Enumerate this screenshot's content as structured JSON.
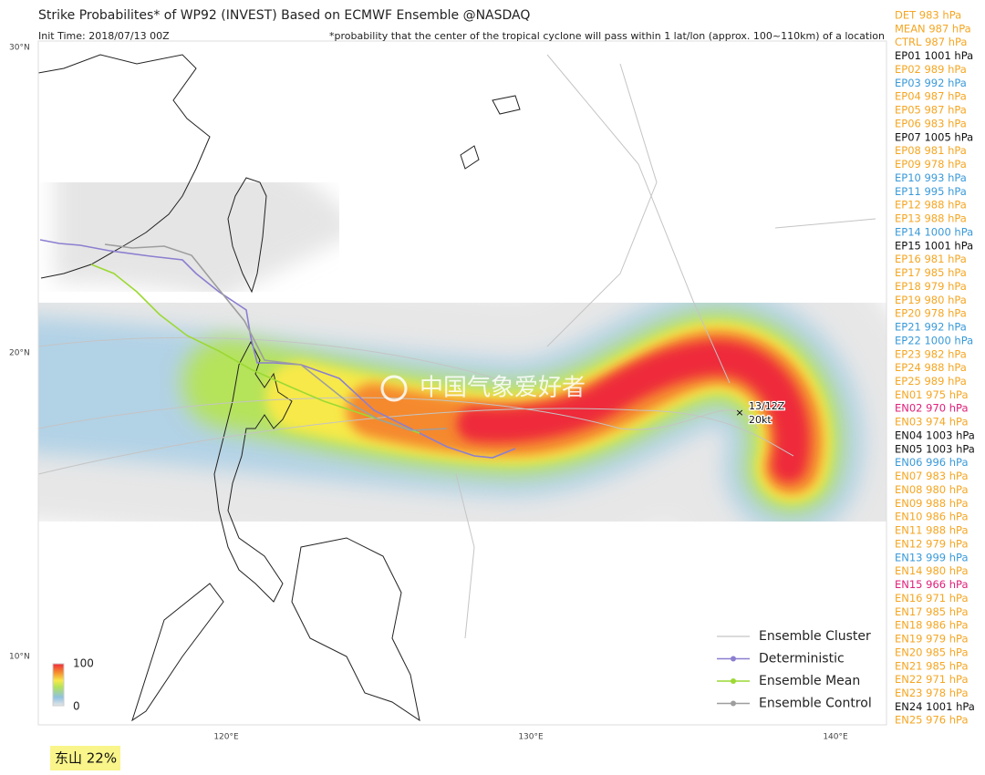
{
  "header": {
    "title": "Strike Probabilites* of WP92 (INVEST) Based on ECMWF Ensemble  @NASDAQ",
    "init_time": "Init Time: 2018/07/13 00Z",
    "note": "*probability that the center of the tropical cyclone will pass within 1 lat/lon (approx. 100~110km) of a location"
  },
  "map": {
    "lat_labels": [
      "30°N",
      "20°N",
      "10°N"
    ],
    "lon_labels": [
      "120°E",
      "130°E",
      "140°E"
    ],
    "colorbar": {
      "max": 100,
      "min": 0
    },
    "storm_label": [
      "13/12Z",
      "20kt"
    ],
    "watermark": "中国气象爱好者"
  },
  "legend": {
    "items": [
      "Ensemble Cluster",
      "Deterministic",
      "Ensemble Mean",
      "Ensemble Control"
    ]
  },
  "footer": {
    "location_label": "东山 22%"
  },
  "members": [
    {
      "label": "DET 983 hPa",
      "color": "#f5a623"
    },
    {
      "label": "MEAN 987 hPa",
      "color": "#f5a623"
    },
    {
      "label": "CTRL 987 hPa",
      "color": "#f5a623"
    },
    {
      "label": "EP01 1001 hPa",
      "color": "#111111"
    },
    {
      "label": "EP02 989 hPa",
      "color": "#f5a623"
    },
    {
      "label": "EP03 992 hPa",
      "color": "#3a9ad9"
    },
    {
      "label": "EP04 987 hPa",
      "color": "#f5a623"
    },
    {
      "label": "EP05 987 hPa",
      "color": "#f5a623"
    },
    {
      "label": "EP06 983 hPa",
      "color": "#f5a623"
    },
    {
      "label": "EP07 1005 hPa",
      "color": "#111111"
    },
    {
      "label": "EP08 981 hPa",
      "color": "#f5a623"
    },
    {
      "label": "EP09 978 hPa",
      "color": "#f5a623"
    },
    {
      "label": "EP10 993 hPa",
      "color": "#3a9ad9"
    },
    {
      "label": "EP11 995 hPa",
      "color": "#3a9ad9"
    },
    {
      "label": "EP12 988 hPa",
      "color": "#f5a623"
    },
    {
      "label": "EP13 988 hPa",
      "color": "#f5a623"
    },
    {
      "label": "EP14 1000 hPa",
      "color": "#3a9ad9"
    },
    {
      "label": "EP15 1001 hPa",
      "color": "#111111"
    },
    {
      "label": "EP16 981 hPa",
      "color": "#f5a623"
    },
    {
      "label": "EP17 985 hPa",
      "color": "#f5a623"
    },
    {
      "label": "EP18 979 hPa",
      "color": "#f5a623"
    },
    {
      "label": "EP19 980 hPa",
      "color": "#f5a623"
    },
    {
      "label": "EP20 978 hPa",
      "color": "#f5a623"
    },
    {
      "label": "EP21 992 hPa",
      "color": "#3a9ad9"
    },
    {
      "label": "EP22 1000 hPa",
      "color": "#3a9ad9"
    },
    {
      "label": "EP23 982 hPa",
      "color": "#f5a623"
    },
    {
      "label": "EP24 988 hPa",
      "color": "#f5a623"
    },
    {
      "label": "EP25 989 hPa",
      "color": "#f5a623"
    },
    {
      "label": "EN01 975 hPa",
      "color": "#f5a623"
    },
    {
      "label": "EN02 970 hPa",
      "color": "#e0207a"
    },
    {
      "label": "EN03 974 hPa",
      "color": "#f5a623"
    },
    {
      "label": "EN04 1003 hPa",
      "color": "#111111"
    },
    {
      "label": "EN05 1003 hPa",
      "color": "#111111"
    },
    {
      "label": "EN06 996 hPa",
      "color": "#3a9ad9"
    },
    {
      "label": "EN07 983 hPa",
      "color": "#f5a623"
    },
    {
      "label": "EN08 980 hPa",
      "color": "#f5a623"
    },
    {
      "label": "EN09 988 hPa",
      "color": "#f5a623"
    },
    {
      "label": "EN10 986 hPa",
      "color": "#f5a623"
    },
    {
      "label": "EN11 988 hPa",
      "color": "#f5a623"
    },
    {
      "label": "EN12 979 hPa",
      "color": "#f5a623"
    },
    {
      "label": "EN13 999 hPa",
      "color": "#3a9ad9"
    },
    {
      "label": "EN14 980 hPa",
      "color": "#f5a623"
    },
    {
      "label": "EN15 966 hPa",
      "color": "#e0207a"
    },
    {
      "label": "EN16 971 hPa",
      "color": "#f5a623"
    },
    {
      "label": "EN17 985 hPa",
      "color": "#f5a623"
    },
    {
      "label": "EN18 986 hPa",
      "color": "#f5a623"
    },
    {
      "label": "EN19 979 hPa",
      "color": "#f5a623"
    },
    {
      "label": "EN20 985 hPa",
      "color": "#f5a623"
    },
    {
      "label": "EN21 985 hPa",
      "color": "#f5a623"
    },
    {
      "label": "EN22 971 hPa",
      "color": "#f5a623"
    },
    {
      "label": "EN23 978 hPa",
      "color": "#f5a623"
    },
    {
      "label": "EN24 1001 hPa",
      "color": "#111111"
    },
    {
      "label": "EN25 976 hPa",
      "color": "#f5a623"
    }
  ]
}
